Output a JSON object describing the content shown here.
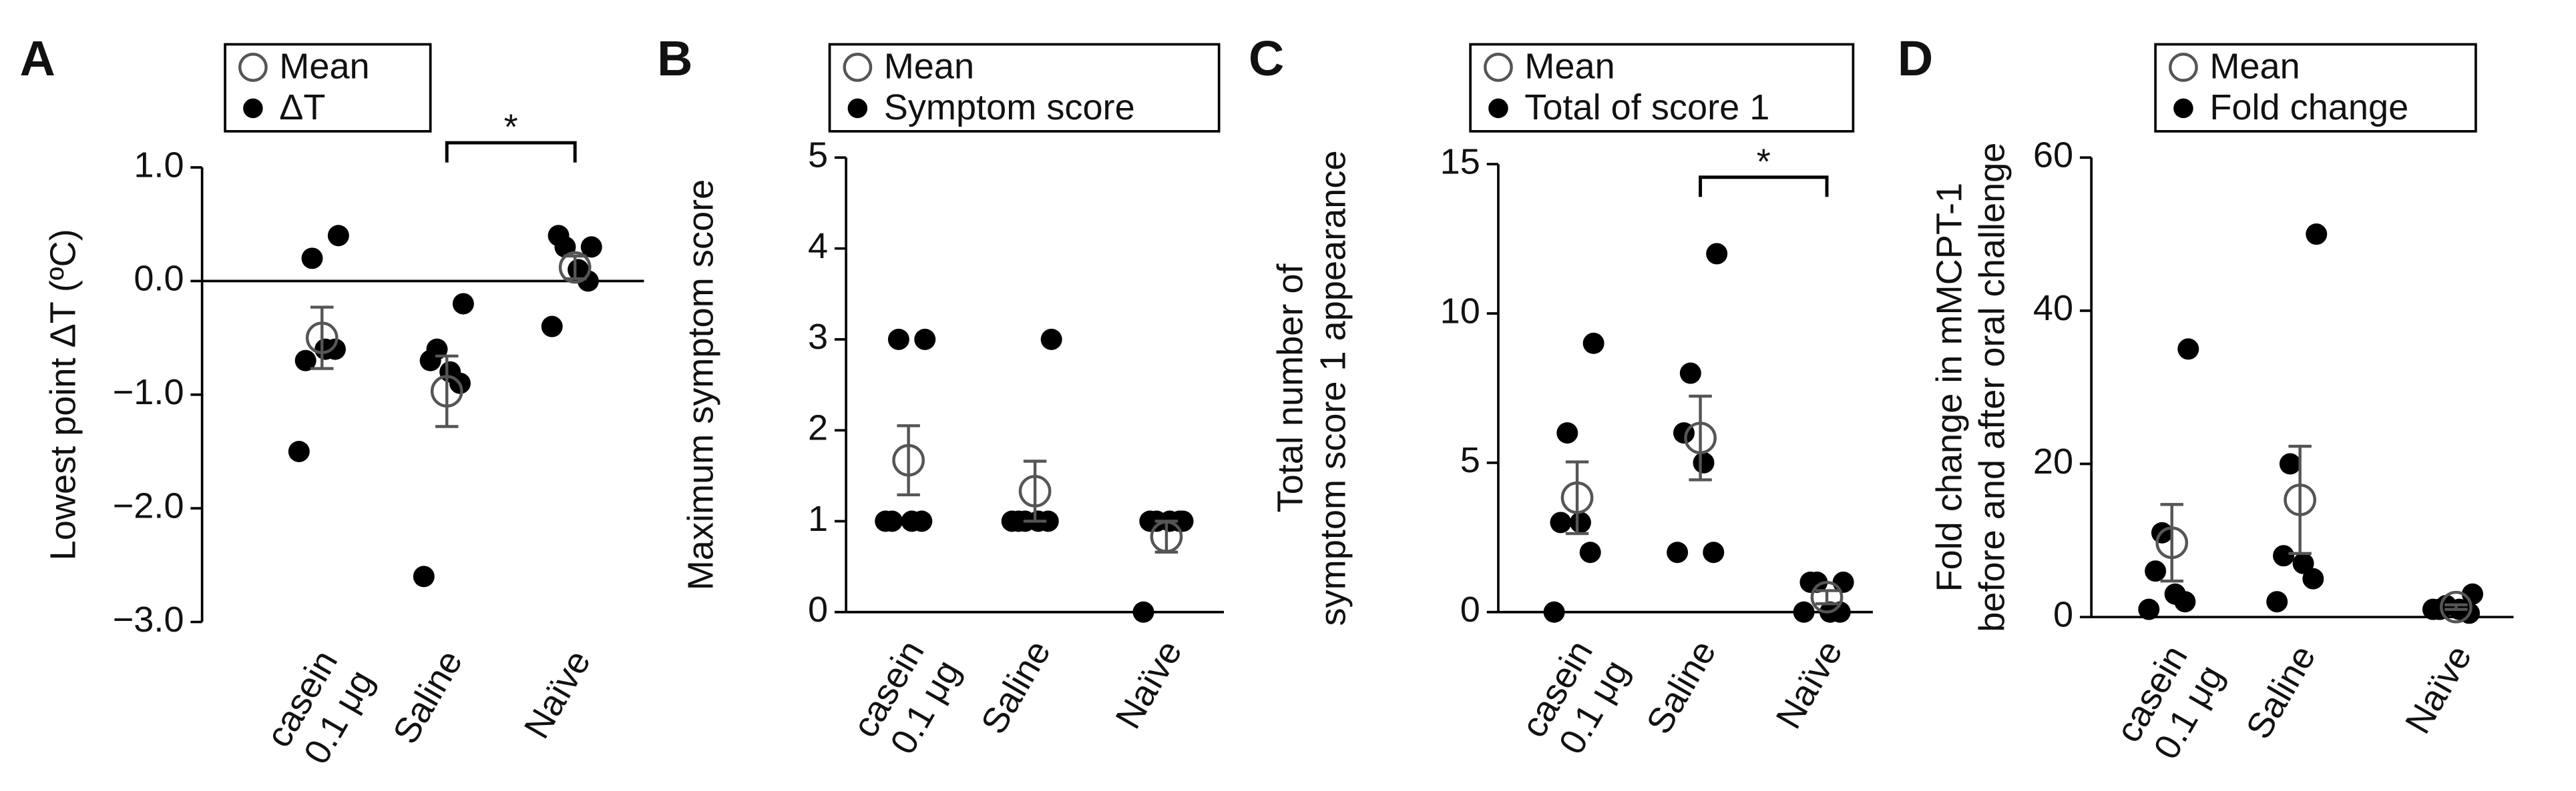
{
  "chart_data": [
    {
      "type": "dot",
      "panel_label": "A",
      "ylabel": [
        "Lowest point ΔT (ºC)"
      ],
      "categories": [
        [
          "casein",
          "0.1 μg"
        ],
        [
          "Saline"
        ],
        [
          "Naïve"
        ]
      ],
      "points": {
        "name": "ΔT",
        "color": "#000000",
        "values": [
          [
            0.4,
            0.2,
            -0.7,
            -0.6,
            -0.6,
            -1.5
          ],
          [
            -0.2,
            -0.6,
            -0.7,
            -0.8,
            -0.9,
            -2.6
          ],
          [
            0.3,
            0.3,
            0.4,
            0.1,
            0,
            -0.4
          ]
        ]
      },
      "mean": {
        "name": "Mean",
        "color": "#555555",
        "values": [
          -0.5,
          -0.97,
          0.12
        ],
        "errors": [
          0.27,
          0.31,
          0.1
        ]
      },
      "ylim": [
        -3,
        1
      ],
      "yticks": [
        {
          "value": 1,
          "label": "1.0"
        },
        {
          "value": 0,
          "label": "0.0"
        },
        {
          "value": -1,
          "label": "−1.0"
        },
        {
          "value": -2,
          "label": "−2.0"
        },
        {
          "value": -3,
          "label": "−3.0"
        }
      ],
      "significance": [
        {
          "between": [
            1,
            2
          ],
          "label": "*"
        }
      ]
    },
    {
      "type": "dot",
      "panel_label": "B",
      "ylabel": [
        "Maximum symptom score"
      ],
      "categories": [
        [
          "casein",
          "0.1 μg"
        ],
        [
          "Saline"
        ],
        [
          "Naïve"
        ]
      ],
      "points": {
        "name": "Symptom score",
        "color": "#000000",
        "values": [
          [
            3,
            3,
            1,
            1,
            1,
            1
          ],
          [
            3,
            1,
            1,
            1,
            1,
            1
          ],
          [
            1,
            1,
            1,
            1,
            1,
            0
          ]
        ]
      },
      "mean": {
        "name": "Mean",
        "color": "#555555",
        "values": [
          1.67,
          1.33,
          0.83
        ],
        "errors": [
          0.38,
          0.33,
          0.17
        ]
      },
      "ylim": [
        0,
        5
      ],
      "yticks": [
        0,
        1,
        2,
        3,
        4,
        5
      ],
      "significance": []
    },
    {
      "type": "dot",
      "panel_label": "C",
      "ylabel": [
        "Total number of",
        "symptom score 1 appearance"
      ],
      "categories": [
        [
          "casein",
          "0.1 μg"
        ],
        [
          "Saline"
        ],
        [
          "Naïve"
        ]
      ],
      "points": {
        "name": "Total of score 1",
        "color": "#000000",
        "values": [
          [
            9,
            6,
            3,
            3,
            2,
            0
          ],
          [
            12,
            8,
            6,
            5,
            2,
            2
          ],
          [
            1,
            1,
            1,
            0,
            0,
            0
          ]
        ]
      },
      "mean": {
        "name": "Mean",
        "color": "#555555",
        "values": [
          3.83,
          5.83,
          0.5
        ],
        "errors": [
          1.2,
          1.4,
          0.22
        ]
      },
      "ylim": [
        0,
        15
      ],
      "yticks": [
        0,
        5,
        10,
        15
      ],
      "significance": [
        {
          "between": [
            1,
            2
          ],
          "label": "*"
        }
      ]
    },
    {
      "type": "dot",
      "panel_label": "D",
      "ylabel": [
        "Fold change in mMCPT-1",
        "before and after oral challenge"
      ],
      "categories": [
        [
          "casein",
          "0.1 μg"
        ],
        [
          "Saline"
        ],
        [
          "Naïve"
        ]
      ],
      "points": {
        "name": "Fold change",
        "color": "#000000",
        "values": [
          [
            35,
            11,
            6,
            3,
            2,
            1
          ],
          [
            50,
            20,
            8,
            7,
            5,
            2
          ],
          [
            3,
            1.5,
            1,
            1,
            0.5,
            1
          ]
        ]
      },
      "mean": {
        "name": "Mean",
        "color": "#555555",
        "values": [
          9.7,
          15.3,
          1.3
        ],
        "errors": [
          5,
          7,
          0.3
        ]
      },
      "ylim": [
        0,
        60
      ],
      "yticks": [
        0,
        20,
        40,
        60
      ],
      "significance": []
    }
  ]
}
